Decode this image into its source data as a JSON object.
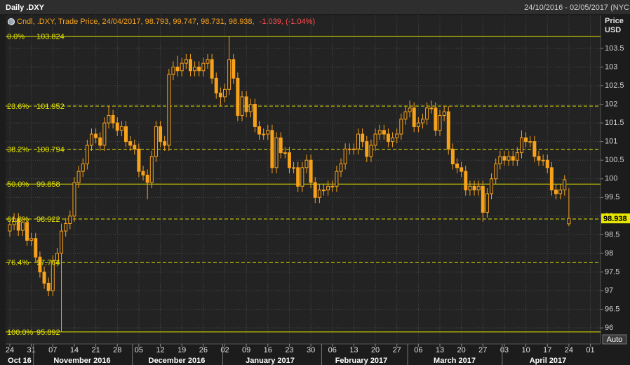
{
  "chart_data": {
    "type": "candlestick",
    "title": "Daily .DXY",
    "date_range": "24/10/2016 - 02/05/2017 (NYC",
    "legend": [
      "Cndl, .DXY, Trade Price, 24/04/2017, 98.793, 99.747, 98.731, 98.938,",
      "-1.039, (-1.04%)"
    ],
    "y_axis_title": [
      "Price",
      "USD"
    ],
    "auto_button": "Auto",
    "color": "#f7a21b",
    "fib_color": "#e6e600",
    "grid": true,
    "last_price": 98.938,
    "ylim": [
      95.57,
      103.95
    ],
    "yticks": [
      96,
      96.5,
      97,
      97.5,
      98,
      98.5,
      99,
      99.5,
      100,
      100.5,
      101,
      101.5,
      102,
      102.5,
      103,
      103.5
    ],
    "month_labels": [
      "Oct 16",
      "November 2016",
      "December 2016",
      "January 2017",
      "February 2017",
      "March 2017",
      "April 2017"
    ],
    "fib_levels": [
      {
        "label": "0.0%",
        "value": 103.824,
        "dashed": false
      },
      {
        "label": "23.6%",
        "value": 101.952,
        "dashed": true
      },
      {
        "label": "38.2%",
        "value": 100.794,
        "dashed": true
      },
      {
        "label": "50.0%",
        "value": 99.858,
        "dashed": false
      },
      {
        "label": "61.8%",
        "value": 98.922,
        "dashed": true
      },
      {
        "label": "76.4%",
        "value": 97.764,
        "dashed": true
      },
      {
        "label": "100.0%",
        "value": 95.892,
        "dashed": false
      }
    ],
    "categories": [
      "24",
      null,
      null,
      null,
      null,
      "31",
      null,
      null,
      null,
      null,
      "07",
      null,
      null,
      null,
      null,
      "14",
      null,
      null,
      null,
      null,
      "21",
      null,
      null,
      null,
      null,
      "28",
      null,
      null,
      null,
      null,
      "05",
      null,
      null,
      null,
      null,
      "12",
      null,
      null,
      null,
      null,
      "19",
      null,
      null,
      null,
      null,
      "26",
      null,
      null,
      null,
      null,
      "02",
      null,
      null,
      null,
      null,
      "09",
      null,
      null,
      null,
      null,
      "16",
      null,
      null,
      null,
      null,
      "23",
      null,
      null,
      null,
      null,
      "30",
      null,
      null,
      null,
      null,
      "06",
      null,
      null,
      null,
      null,
      "13",
      null,
      null,
      null,
      null,
      "20",
      null,
      null,
      null,
      null,
      "27",
      null,
      null,
      null,
      null,
      "06",
      null,
      null,
      null,
      null,
      "13",
      null,
      null,
      null,
      null,
      "20",
      null,
      null,
      null,
      null,
      "27",
      null,
      null,
      null,
      null,
      "03",
      null,
      null,
      null,
      null,
      "10",
      null,
      null,
      null,
      null,
      "17",
      null,
      null,
      null,
      null,
      "24",
      null,
      null,
      null,
      null,
      "01"
    ],
    "open": [
      98.6,
      98.77,
      98.93,
      98.62,
      98.83,
      98.35,
      98.4,
      97.9,
      97.5,
      97.2,
      97.0,
      97.8,
      98.0,
      98.6,
      98.8,
      99.0,
      99.9,
      100.2,
      100.4,
      100.9,
      101.2,
      101.1,
      100.9,
      101.5,
      101.7,
      101.5,
      101.3,
      101.4,
      101.0,
      100.9,
      100.8,
      100.2,
      100.1,
      99.9,
      100.6,
      101.4,
      101.0,
      100.9,
      102.8,
      103.0,
      102.9,
      103.1,
      103.2,
      102.9,
      103.0,
      102.9,
      103.1,
      103.2,
      102.7,
      102.3,
      102.2,
      102.4,
      103.2,
      102.7,
      101.7,
      102.2,
      101.8,
      102.0,
      101.4,
      101.2,
      101.2,
      101.3,
      100.3,
      101.1,
      100.7,
      100.7,
      100.3,
      100.3,
      99.8,
      100.3,
      100.5,
      99.9,
      99.5,
      99.7,
      99.7,
      99.8,
      99.8,
      100.2,
      100.4,
      100.8,
      100.8,
      100.8,
      101.2,
      101.0,
      100.6,
      100.9,
      101.2,
      101.3,
      101.2,
      101.0,
      101.1,
      101.2,
      101.6,
      101.8,
      101.9,
      101.4,
      101.5,
      101.6,
      101.9,
      101.9,
      101.3,
      101.7,
      101.8,
      100.8,
      100.4,
      100.3,
      100.2,
      99.7,
      99.8,
      99.7,
      99.8,
      99.1,
      99.6,
      100.0,
      100.4,
      100.6,
      100.5,
      100.6,
      100.5,
      100.7,
      101.1,
      101.0,
      101.0,
      100.6,
      100.5,
      100.5,
      100.3,
      99.7,
      99.6,
      99.7,
      98.793,
      null,
      null,
      null,
      null,
      null
    ],
    "high": [
      98.92,
      99.08,
      99.08,
      98.98,
      98.98,
      98.55,
      98.55,
      98.05,
      97.65,
      97.35,
      97.95,
      98.15,
      98.8,
      98.95,
      99.15,
      100.05,
      100.35,
      100.55,
      101.05,
      101.35,
      101.35,
      101.25,
      101.65,
      101.95,
      101.85,
      101.65,
      101.55,
      101.55,
      101.15,
      101.05,
      100.95,
      100.35,
      100.25,
      100.75,
      101.55,
      101.55,
      101.15,
      102.95,
      103.15,
      103.3,
      103.25,
      103.35,
      103.35,
      103.15,
      103.15,
      103.25,
      103.35,
      103.35,
      102.85,
      102.45,
      102.55,
      103.824,
      103.35,
      102.85,
      102.35,
      102.35,
      102.15,
      102.15,
      101.55,
      101.35,
      101.45,
      101.45,
      101.25,
      101.25,
      100.85,
      100.85,
      100.45,
      100.45,
      100.45,
      100.65,
      100.65,
      100.05,
      99.85,
      99.85,
      99.95,
      99.95,
      100.35,
      100.55,
      100.95,
      100.95,
      100.95,
      101.35,
      101.35,
      101.15,
      101.05,
      101.35,
      101.45,
      101.45,
      101.35,
      101.25,
      101.35,
      101.75,
      101.95,
      102.1,
      102.05,
      101.65,
      101.75,
      102.05,
      102.1,
      102.05,
      101.85,
      101.95,
      101.95,
      100.95,
      100.55,
      100.45,
      100.35,
      99.95,
      99.95,
      99.95,
      99.95,
      99.75,
      100.15,
      100.55,
      100.75,
      100.75,
      100.75,
      100.75,
      100.85,
      101.3,
      101.25,
      101.15,
      101.15,
      100.75,
      100.65,
      100.65,
      100.45,
      99.85,
      99.85,
      100.1,
      99.747,
      null,
      null,
      null,
      null,
      null
    ],
    "low": [
      98.45,
      98.62,
      98.47,
      98.47,
      98.2,
      98.2,
      97.75,
      97.35,
      97.05,
      96.85,
      96.85,
      97.65,
      95.892,
      98.45,
      98.65,
      98.85,
      99.75,
      100.05,
      100.25,
      100.75,
      100.95,
      100.75,
      100.75,
      101.35,
      101.35,
      101.15,
      101.15,
      100.85,
      100.75,
      100.65,
      100.05,
      99.95,
      99.45,
      99.75,
      100.45,
      100.85,
      100.75,
      100.75,
      102.65,
      102.75,
      102.75,
      102.95,
      102.75,
      102.75,
      102.75,
      102.75,
      102.95,
      102.55,
      102.15,
      101.95,
      102.05,
      102.25,
      102.55,
      101.55,
      101.55,
      101.65,
      101.65,
      101.25,
      101.05,
      101.05,
      101.05,
      100.15,
      100.15,
      100.55,
      100.55,
      100.15,
      100.15,
      99.65,
      99.65,
      100.15,
      99.75,
      99.35,
      99.35,
      99.55,
      99.55,
      99.65,
      99.65,
      100.05,
      100.25,
      100.65,
      100.65,
      100.65,
      100.85,
      100.45,
      100.45,
      100.75,
      101.05,
      101.05,
      100.85,
      100.85,
      100.95,
      101.05,
      101.45,
      101.65,
      101.25,
      101.25,
      101.35,
      101.45,
      101.75,
      101.15,
      101.15,
      101.55,
      100.65,
      100.25,
      100.15,
      100.05,
      99.55,
      99.55,
      99.55,
      99.55,
      98.85,
      98.95,
      99.45,
      99.85,
      100.25,
      100.35,
      100.35,
      100.35,
      100.35,
      100.55,
      100.85,
      100.85,
      100.45,
      100.35,
      100.35,
      100.15,
      99.55,
      99.45,
      99.45,
      99.55,
      98.731,
      null,
      null,
      null,
      null,
      null
    ],
    "close": [
      98.77,
      98.93,
      98.62,
      98.83,
      98.35,
      98.4,
      97.9,
      97.5,
      97.2,
      97.0,
      97.8,
      98.0,
      98.6,
      98.8,
      99.0,
      99.9,
      100.2,
      100.4,
      100.9,
      101.2,
      101.1,
      100.9,
      101.5,
      101.7,
      101.5,
      101.3,
      101.4,
      101.0,
      100.9,
      100.8,
      100.2,
      100.1,
      99.9,
      100.6,
      101.4,
      101.0,
      100.9,
      102.8,
      103.0,
      102.9,
      103.1,
      103.2,
      102.9,
      103.0,
      102.9,
      103.1,
      103.2,
      102.7,
      102.3,
      102.2,
      102.4,
      103.2,
      102.7,
      101.7,
      102.2,
      101.8,
      102.0,
      101.4,
      101.2,
      101.2,
      101.3,
      100.3,
      101.1,
      100.7,
      100.7,
      100.3,
      100.3,
      99.8,
      100.3,
      100.5,
      99.9,
      99.5,
      99.7,
      99.7,
      99.8,
      99.8,
      100.2,
      100.4,
      100.8,
      100.8,
      100.8,
      101.2,
      101.0,
      100.6,
      100.9,
      101.2,
      101.3,
      101.2,
      101.0,
      101.1,
      101.2,
      101.6,
      101.8,
      101.9,
      101.4,
      101.5,
      101.6,
      101.9,
      101.9,
      101.3,
      101.7,
      101.8,
      100.8,
      100.4,
      100.3,
      100.2,
      99.7,
      99.8,
      99.7,
      99.8,
      99.1,
      99.6,
      100.0,
      100.4,
      100.6,
      100.5,
      100.6,
      100.5,
      100.7,
      101.1,
      101.0,
      101.0,
      100.6,
      100.5,
      100.5,
      100.3,
      99.7,
      99.6,
      99.7,
      99.977,
      98.938,
      null,
      null,
      null,
      null,
      null
    ]
  }
}
